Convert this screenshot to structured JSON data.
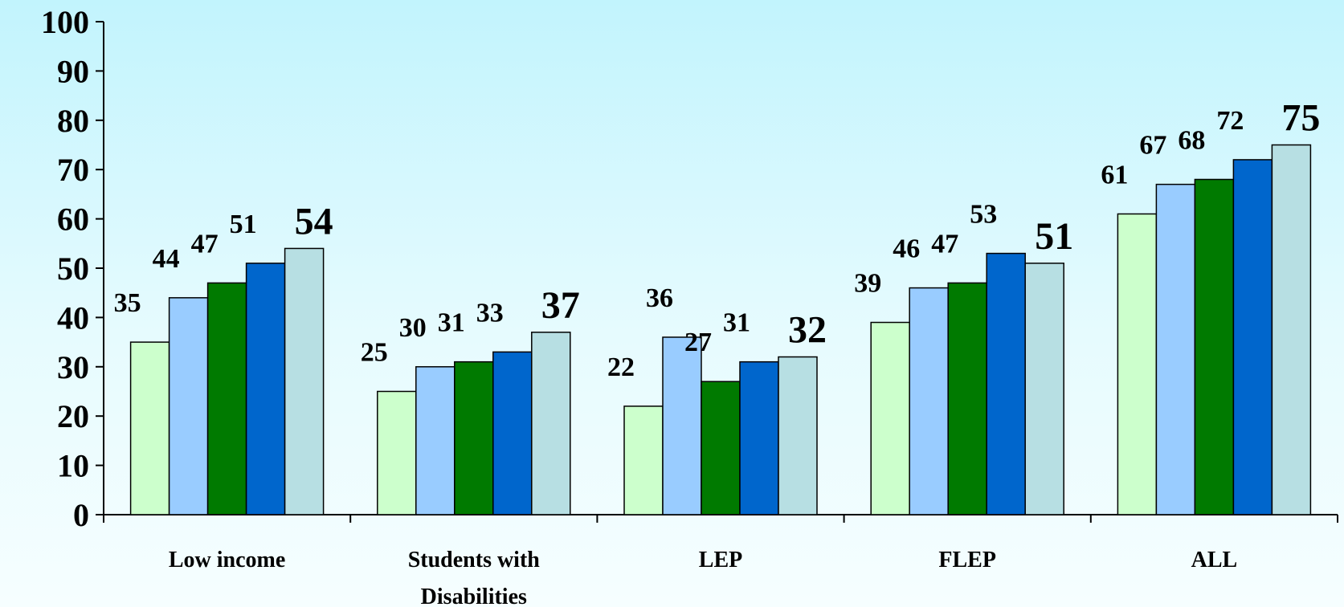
{
  "chart_data": {
    "type": "bar",
    "categories": [
      "Low income",
      [
        "Students with",
        "Disabilities"
      ],
      "LEP",
      "FLEP",
      "ALL"
    ],
    "category_names": [
      "Low income",
      "Students with Disabilities",
      "LEP",
      "FLEP",
      "ALL"
    ],
    "series": [
      {
        "values": [
          35,
          25,
          22,
          39,
          61
        ],
        "color": "#ccffcc"
      },
      {
        "values": [
          44,
          30,
          36,
          46,
          67
        ],
        "color": "#99ccff"
      },
      {
        "values": [
          47,
          31,
          27,
          47,
          68
        ],
        "color": "#007a00"
      },
      {
        "values": [
          51,
          33,
          31,
          53,
          72
        ],
        "color": "#0066cc"
      },
      {
        "values": [
          54,
          37,
          32,
          51,
          75
        ],
        "color": "#b7dfe3"
      }
    ],
    "ylim": [
      0,
      100
    ],
    "yticks": [
      0,
      10,
      20,
      30,
      40,
      50,
      60,
      70,
      80,
      90,
      100
    ],
    "title": "",
    "xlabel": "",
    "ylabel": "",
    "grid": false,
    "legend": "none"
  }
}
